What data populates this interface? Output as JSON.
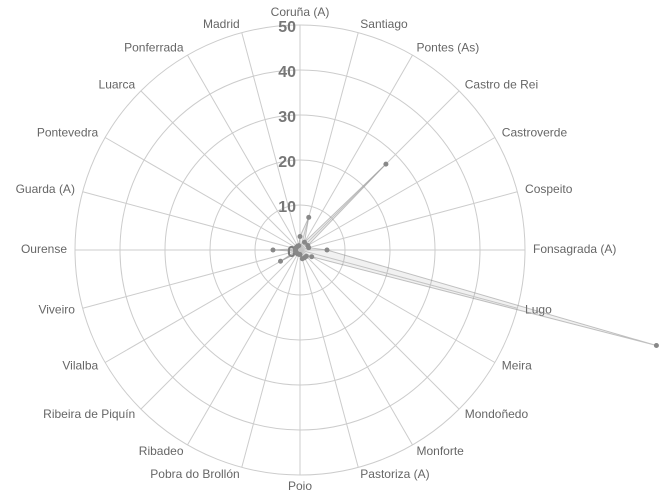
{
  "chart_data": {
    "type": "radar",
    "categories": [
      "Coruña (A)",
      "Santiago",
      "Pontes (As)",
      "Castro de Rei",
      "Castroverde",
      "Cospeito",
      "Fonsagrada (A)",
      "Lugo",
      "Meira",
      "Mondoñedo",
      "Monforte",
      "Pastoriza (A)",
      "Poio",
      "Pobra do Brollón",
      "Ribadeo",
      "Ribeira de Piquín",
      "Vilalba",
      "Viveiro",
      "Ourense",
      "Guarda (A)",
      "Pontevedra",
      "Luarca",
      "Ponferrada",
      "Madrid"
    ],
    "values": [
      3,
      7.5,
      2,
      27,
      2,
      2,
      6,
      82,
      3,
      2,
      2,
      2,
      1,
      1,
      1,
      1,
      5,
      1,
      6,
      1,
      1,
      1,
      1,
      1
    ],
    "color": "#888888",
    "ylim": [
      0,
      50
    ],
    "yticks": [
      0,
      10,
      20,
      30,
      40,
      50
    ],
    "grid": true
  }
}
